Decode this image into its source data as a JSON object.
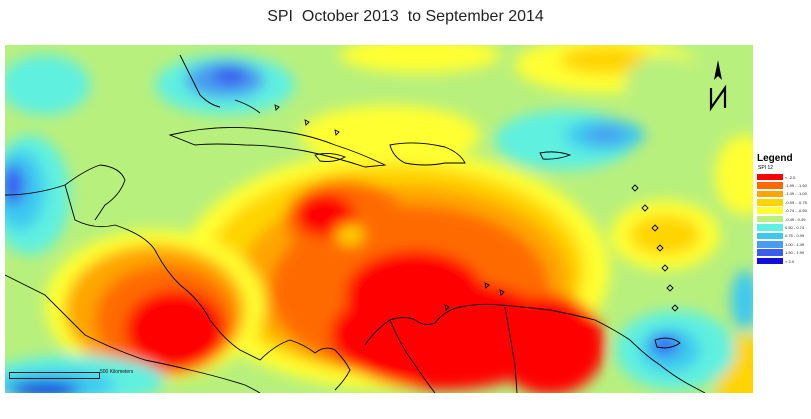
{
  "title": "SPI  October 2013  to September 2014",
  "legend": {
    "title": "Legend",
    "subtitle": "SPI 12",
    "items": [
      {
        "label": "< -2.0",
        "color": "#ff0000"
      },
      {
        "label": "-1.99 - -1.50",
        "color": "#ff6a00"
      },
      {
        "label": "-1.49 - -1.00",
        "color": "#ffa500"
      },
      {
        "label": "-0.99 - -0.75",
        "color": "#ffd400"
      },
      {
        "label": "-0.74 - -0.50",
        "color": "#ffff33"
      },
      {
        "label": "-0.49 - 0.49",
        "color": "#b8f07d"
      },
      {
        "label": "0.50 - 0.74",
        "color": "#5ef0e0"
      },
      {
        "label": "0.75 - 0.99",
        "color": "#3cc8f0"
      },
      {
        "label": "1.00 - 1.49",
        "color": "#4a9cf0"
      },
      {
        "label": "1.50 - 1.99",
        "color": "#3a5cf0"
      },
      {
        "label": "> 2.0",
        "color": "#1010d8"
      }
    ]
  },
  "scale": {
    "label": "500  Kilometers"
  },
  "north_arrow": {
    "icon": "north-arrow-icon",
    "letter": "N"
  },
  "colors": {
    "background": "#b8f07d",
    "coastline": "#000000"
  }
}
